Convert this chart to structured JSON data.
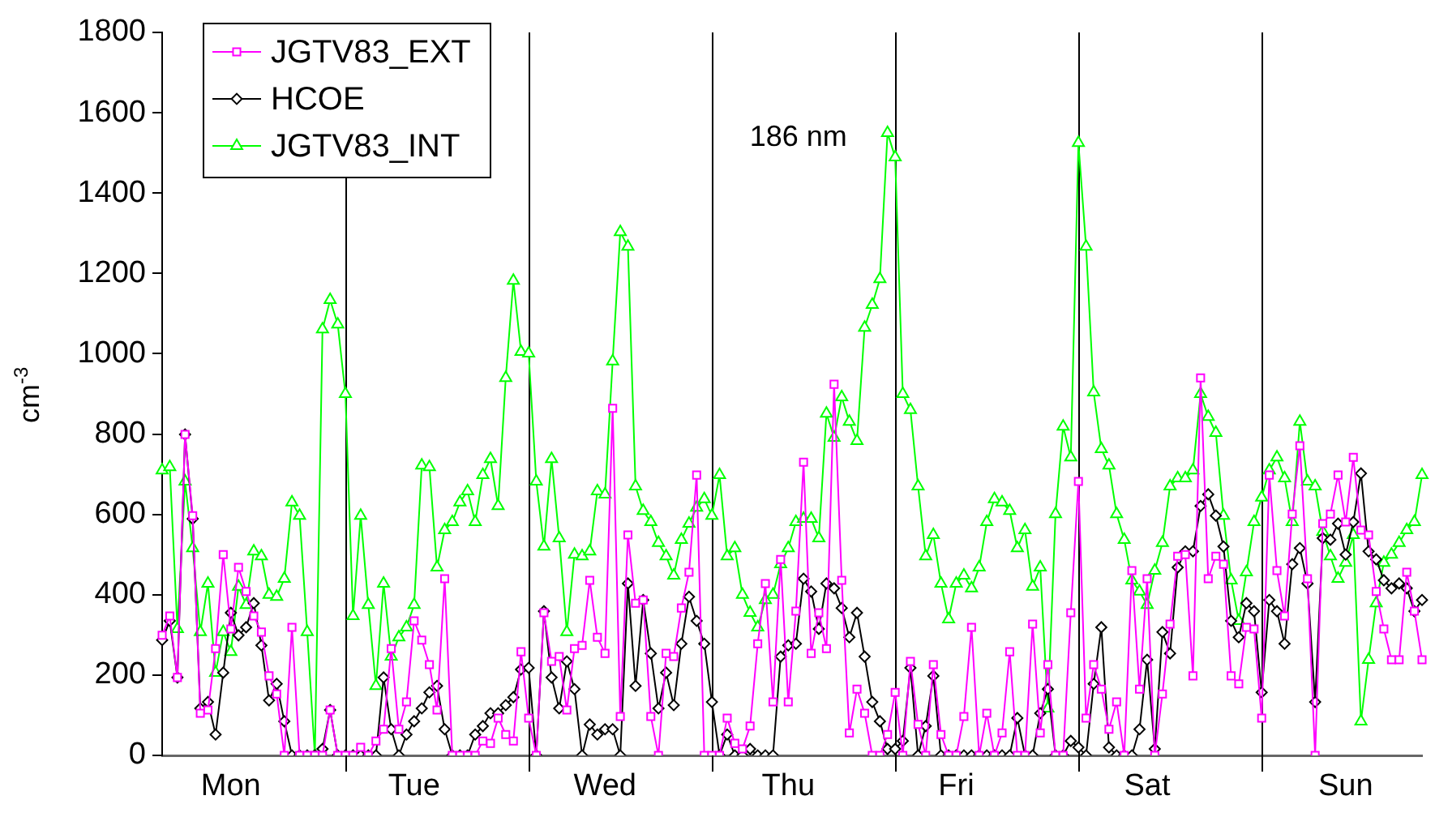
{
  "chart_data": {
    "type": "line",
    "ylabel": "cm$^{-3}$",
    "annotations": [
      "186 nm"
    ],
    "legend": "top left",
    "grid": false,
    "categories": [
      null,
      null,
      null,
      null,
      null,
      null,
      null,
      null,
      null,
      "Mon",
      null,
      null,
      null,
      null,
      null,
      null,
      null,
      null,
      null,
      null,
      null,
      null,
      null,
      null,
      null,
      null,
      null,
      null,
      null,
      null,
      null,
      null,
      null,
      "Tue",
      null,
      null,
      null,
      null,
      null,
      null,
      null,
      null,
      null,
      null,
      null,
      null,
      null,
      null,
      null,
      null,
      null,
      null,
      null,
      null,
      null,
      null,
      null,
      null,
      "Wed",
      null,
      null,
      null,
      null,
      null,
      null,
      null,
      null,
      null,
      null,
      null,
      null,
      null,
      null,
      null,
      null,
      null,
      null,
      null,
      null,
      null,
      null,
      null,
      "Thu",
      null,
      null,
      null,
      null,
      null,
      null,
      null,
      null,
      null,
      null,
      null,
      null,
      null,
      null,
      null,
      null,
      null,
      null,
      null,
      null,
      null,
      "Fri",
      null,
      null,
      null,
      null,
      null,
      null,
      null,
      null,
      null,
      null,
      null,
      null,
      null,
      null,
      null,
      null,
      null,
      null,
      null,
      null,
      null,
      null,
      null,
      null,
      "Sat",
      null,
      null,
      null,
      null,
      null,
      null,
      null,
      null,
      null,
      null,
      null,
      null,
      null,
      null,
      null,
      null,
      null,
      null,
      null,
      null,
      null,
      null,
      null,
      null,
      null,
      "Sun",
      null,
      null,
      null,
      null,
      null,
      null,
      null,
      null,
      null,
      null
    ],
    "ylim": [
      0,
      1800
    ],
    "yticks": [
      0,
      200,
      400,
      600,
      800,
      1000,
      1200,
      1400,
      1600,
      1800
    ],
    "series": [
      {
        "name": "JGTV83_EXT",
        "color": "#ff00ff",
        "marker": "square",
        "values": [
          299,
          347,
          194,
          799,
          597,
          105,
          113,
          266,
          500,
          315,
          468,
          408,
          347,
          307,
          198,
          153,
          0,
          319,
          0,
          0,
          0,
          0,
          113,
          0,
          0,
          0,
          20,
          0,
          36,
          65,
          266,
          65,
          133,
          335,
          287,
          226,
          113,
          440,
          0,
          0,
          0,
          0,
          36,
          30,
          93,
          52,
          36,
          258,
          93,
          0,
          355,
          234,
          246,
          113,
          266,
          274,
          436,
          294,
          254,
          864,
          97,
          549,
          379,
          387,
          97,
          0,
          254,
          246,
          367,
          456,
          698,
          0,
          0,
          0,
          93,
          30,
          16,
          73,
          278,
          428,
          133,
          488,
          133,
          359,
          730,
          254,
          355,
          266,
          924,
          436,
          56,
          165,
          105,
          0,
          0,
          52,
          157,
          0,
          234,
          77,
          0,
          226,
          52,
          0,
          0,
          97,
          319,
          0,
          105,
          0,
          56,
          258,
          0,
          0,
          327,
          56,
          226,
          0,
          0,
          355,
          682,
          93,
          226,
          165,
          65,
          133,
          0,
          460,
          165,
          440,
          0,
          153,
          327,
          496,
          500,
          198,
          940,
          440,
          496,
          476,
          198,
          178,
          319,
          315,
          93,
          698,
          460,
          347,
          601,
          771,
          440,
          0,
          577,
          601,
          698,
          581,
          742,
          561,
          549,
          408,
          315,
          238,
          238,
          456,
          359,
          238
        ]
      },
      {
        "name": "HCOE",
        "color": "#000000",
        "marker": "diamond",
        "values": [
          287,
          335,
          194,
          799,
          589,
          117,
          133,
          52,
          206,
          355,
          299,
          319,
          379,
          274,
          137,
          178,
          85,
          0,
          0,
          0,
          0,
          16,
          113,
          0,
          0,
          0,
          0,
          0,
          0,
          194,
          65,
          0,
          52,
          85,
          117,
          157,
          173,
          65,
          0,
          0,
          0,
          52,
          73,
          105,
          105,
          125,
          145,
          214,
          218,
          0,
          359,
          194,
          117,
          234,
          165,
          0,
          77,
          52,
          65,
          65,
          0,
          428,
          173,
          387,
          254,
          117,
          206,
          125,
          278,
          395,
          335,
          278,
          133,
          0,
          52,
          0,
          0,
          16,
          0,
          0,
          0,
          246,
          274,
          278,
          440,
          408,
          315,
          428,
          416,
          367,
          294,
          355,
          246,
          133,
          85,
          16,
          16,
          36,
          218,
          0,
          73,
          198,
          0,
          0,
          0,
          0,
          0,
          0,
          0,
          0,
          0,
          0,
          93,
          0,
          0,
          105,
          165,
          0,
          0,
          36,
          20,
          0,
          178,
          319,
          20,
          0,
          0,
          0,
          65,
          238,
          16,
          307,
          254,
          468,
          508,
          508,
          621,
          650,
          597,
          520,
          335,
          294,
          379,
          359,
          157,
          387,
          359,
          278,
          476,
          516,
          428,
          133,
          541,
          537,
          577,
          500,
          581,
          702,
          508,
          488,
          436,
          416,
          428,
          416,
          359,
          387
        ]
      },
      {
        "name": "JGTV83_INT",
        "color": "#00ff00",
        "marker": "triangle",
        "values": [
          710,
          718,
          315,
          682,
          516,
          307,
          428,
          206,
          307,
          258,
          420,
          375,
          508,
          496,
          400,
          395,
          440,
          630,
          597,
          307,
          0,
          1061,
          1134,
          1073,
          900,
          347,
          597,
          375,
          173,
          428,
          246,
          294,
          319,
          375,
          722,
          718,
          468,
          561,
          581,
          630,
          658,
          581,
          698,
          738,
          621,
          940,
          1182,
          1005,
          1001,
          682,
          520,
          738,
          541,
          307,
          500,
          496,
          508,
          658,
          650,
          981,
          1303,
          1267,
          670,
          609,
          581,
          529,
          496,
          448,
          537,
          577,
          617,
          638,
          597,
          698,
          496,
          516,
          400,
          355,
          319,
          387,
          400,
          476,
          516,
          581,
          589,
          589,
          541,
          851,
          791,
          892,
          831,
          783,
          1065,
          1122,
          1186,
          1550,
          1489,
          900,
          860,
          670,
          496,
          549,
          428,
          339,
          428,
          448,
          416,
          468,
          581,
          638,
          630,
          609,
          516,
          561,
          420,
          468,
          117,
          601,
          819,
          742,
          1525,
          1267,
          904,
          763,
          722,
          601,
          537,
          436,
          408,
          375,
          460,
          529,
          670,
          690,
          690,
          710,
          900,
          843,
          803,
          597,
          436,
          335,
          456,
          581,
          642,
          710,
          742,
          690,
          581,
          831,
          682,
          670,
          557,
          496,
          440,
          480,
          549,
          85,
          238,
          379,
          480,
          500,
          529,
          561,
          581,
          698
        ]
      }
    ]
  }
}
